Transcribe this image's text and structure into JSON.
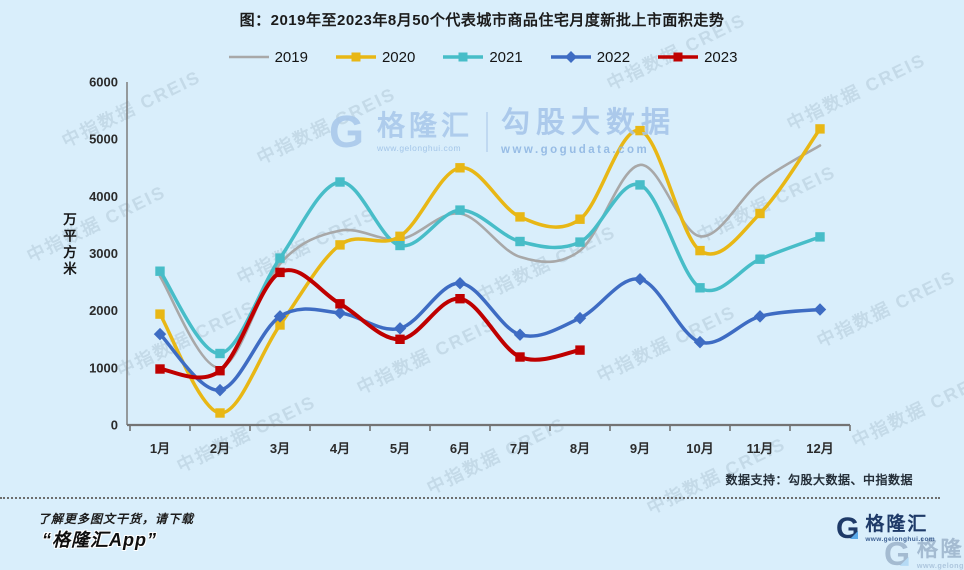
{
  "title": "图：2019年至2023年8月50个代表城市商品住宅月度新批上市面积走势",
  "watermark_tile": "中指数据 CREIS",
  "center_watermark": {
    "g_letter": "G",
    "brand": "格隆汇",
    "brand_url": "www.gelonghui.com",
    "product": "勾股大数据",
    "product_url": "www.gogudata.com"
  },
  "data_support": "数据支持：勾股大数据、中指数据",
  "footer": {
    "promo": "了解更多图文干货，请下载",
    "app_name": "“格隆汇App”"
  },
  "brand_logo": {
    "g_letter": "G",
    "name": "格隆汇",
    "url": "www.gelonghui.com"
  },
  "chart_data": {
    "type": "line",
    "title": "图：2019年至2023年8月50个代表城市商品住宅月度新批上市面积走势",
    "ylabel": "万平方米",
    "ylim": [
      0,
      6000
    ],
    "y_ticks": [
      0,
      1000,
      2000,
      3000,
      4000,
      5000,
      6000
    ],
    "grid": false,
    "legend_position": "top",
    "categories": [
      "1月",
      "2月",
      "3月",
      "4月",
      "5月",
      "6月",
      "7月",
      "8月",
      "9月",
      "10月",
      "11月",
      "12月"
    ],
    "series": [
      {
        "name": "2019",
        "color": "#a8a8a8",
        "marker": "none",
        "values": [
          2600,
          1000,
          2820,
          3400,
          3250,
          3700,
          2940,
          3050,
          4550,
          3300,
          4250,
          4890
        ]
      },
      {
        "name": "2020",
        "color": "#e8b715",
        "marker": "square",
        "values": [
          1940,
          210,
          1750,
          3150,
          3300,
          4500,
          3640,
          3600,
          5150,
          3050,
          3700,
          5180
        ]
      },
      {
        "name": "2021",
        "color": "#47bdc8",
        "marker": "square",
        "values": [
          2690,
          1250,
          2920,
          4250,
          3140,
          3760,
          3210,
          3200,
          4200,
          2400,
          2900,
          3290
        ]
      },
      {
        "name": "2022",
        "color": "#3e6cc3",
        "marker": "diamond",
        "values": [
          1590,
          610,
          1900,
          1960,
          1690,
          2480,
          1580,
          1870,
          2550,
          1450,
          1900,
          2020
        ]
      },
      {
        "name": "2023",
        "color": "#bf0000",
        "marker": "square",
        "values": [
          980,
          950,
          2670,
          2120,
          1500,
          2210,
          1190,
          1310
        ]
      }
    ]
  }
}
